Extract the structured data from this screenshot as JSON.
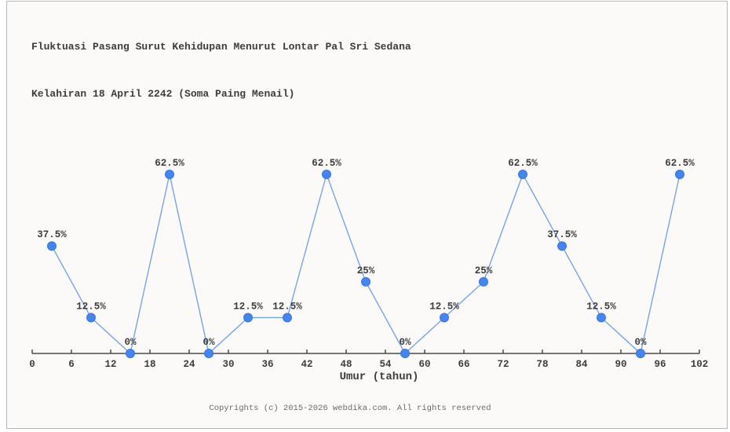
{
  "page": {
    "background": "#fbfaf8",
    "frame_border_color": "#b9b9b9"
  },
  "header": {
    "title_line1": "Fluktuasi Pasang Surut Kehidupan Menurut Lontar Pal Sri Sedana",
    "title_line2": "Kelahiran 18 April 2242 (Soma Paing Menail)"
  },
  "footer": {
    "copyright": "Copyrights (c) 2015-2026 webdika.com. All rights reserved"
  },
  "chart_data": {
    "type": "line",
    "title": "Fluktuasi Pasang Surut Kehidupan Menurut Lontar Pal Sri Sedana Kelahiran 18 April 2242 (Soma Paing Menail)",
    "xlabel": "Umur (tahun)",
    "ylabel": "",
    "x": [
      3,
      9,
      15,
      21,
      27,
      33,
      39,
      45,
      51,
      57,
      63,
      69,
      75,
      81,
      87,
      93,
      99
    ],
    "values": [
      37.5,
      12.5,
      0,
      62.5,
      0,
      12.5,
      12.5,
      62.5,
      25,
      0,
      12.5,
      25,
      62.5,
      37.5,
      12.5,
      0,
      62.5
    ],
    "point_labels": [
      "37.5%",
      "12.5%",
      "0%",
      "62.5%",
      "0%",
      "12.5%",
      "12.5%",
      "62.5%",
      "25%",
      "0%",
      "12.5%",
      "25%",
      "62.5%",
      "37.5%",
      "12.5%",
      "0%",
      "62.5%"
    ],
    "x_ticks": [
      0,
      6,
      12,
      18,
      24,
      30,
      36,
      42,
      48,
      54,
      60,
      66,
      72,
      78,
      84,
      90,
      96,
      102
    ],
    "xlim": [
      0,
      102
    ],
    "ylim": [
      0,
      100
    ],
    "grid": false,
    "legend": "none",
    "marker": "circle",
    "colors": {
      "marker": "#4285f4",
      "marker_edge": "#3a76e0",
      "line": "#6d9eeb",
      "axis": "#4a4a4a",
      "text": "#3d3d3d",
      "footer_text": "#6b6b6b"
    }
  }
}
